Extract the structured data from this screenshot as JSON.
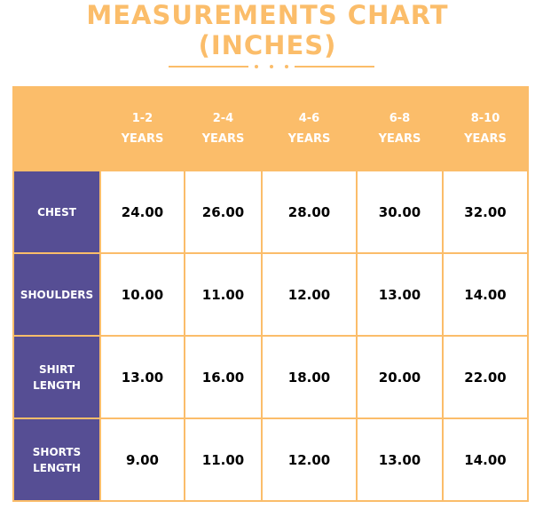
{
  "title": {
    "line1": "MEASUREMENTS CHART",
    "line2": "(INCHES)"
  },
  "colors": {
    "accent": "#fbbd6a",
    "row_header": "#564e94"
  },
  "table": {
    "columns": [
      {
        "line1": "1-2",
        "line2": "YEARS"
      },
      {
        "line1": "2-4",
        "line2": "YEARS"
      },
      {
        "line1": "4-6",
        "line2": "YEARS"
      },
      {
        "line1": "6-8",
        "line2": "YEARS"
      },
      {
        "line1": "8-10",
        "line2": "YEARS"
      }
    ],
    "rows": [
      {
        "line1": "CHEST",
        "line2": "",
        "values": [
          "24.00",
          "26.00",
          "28.00",
          "30.00",
          "32.00"
        ]
      },
      {
        "line1": "SHOULDERS",
        "line2": "",
        "values": [
          "10.00",
          "11.00",
          "12.00",
          "13.00",
          "14.00"
        ]
      },
      {
        "line1": "SHIRT",
        "line2": "LENGTH",
        "values": [
          "13.00",
          "16.00",
          "18.00",
          "20.00",
          "22.00"
        ]
      },
      {
        "line1": "SHORTS",
        "line2": "LENGTH",
        "values": [
          "9.00",
          "11.00",
          "12.00",
          "13.00",
          "14.00"
        ]
      }
    ]
  }
}
